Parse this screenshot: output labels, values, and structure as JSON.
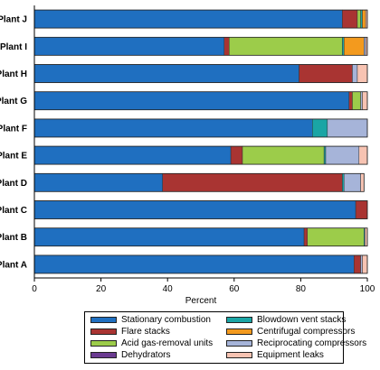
{
  "chart_data": {
    "type": "bar",
    "orientation": "horizontal",
    "stacked": true,
    "categories": [
      "Plant J",
      "Plant I",
      "Plant H",
      "Plant G",
      "Plant F",
      "Plant E",
      "Plant D",
      "Plant C",
      "Plant B",
      "Plant A"
    ],
    "xlabel": "Percent",
    "xlim": [
      0,
      100
    ],
    "xticks": [
      "0",
      "20",
      "40",
      "60",
      "80",
      "100"
    ],
    "grid": false,
    "legend_position": "bottom",
    "series": [
      {
        "name": "Stationary combustion",
        "color": "#1f6fc0",
        "values": [
          92.5,
          57,
          79.5,
          94.5,
          83.5,
          59,
          38.5,
          96.5,
          81,
          96
        ]
      },
      {
        "name": "Flare stacks",
        "color": "#a93432",
        "values": [
          4.5,
          1.5,
          16,
          1,
          0,
          3.5,
          54,
          3.5,
          1,
          2
        ]
      },
      {
        "name": "Acid gas-removal units",
        "color": "#9ccc4a",
        "values": [
          1,
          34,
          0,
          2.5,
          0,
          24.5,
          0,
          0,
          17,
          0
        ]
      },
      {
        "name": "Dehydrators",
        "color": "#6b3b91",
        "values": [
          0,
          0,
          0,
          0,
          0,
          0,
          0,
          0,
          0,
          0
        ]
      },
      {
        "name": "Blowdown vent stacks",
        "color": "#1aa5a5",
        "values": [
          0.5,
          0.5,
          0,
          0,
          4.5,
          0.5,
          0.5,
          0,
          0.3,
          0
        ]
      },
      {
        "name": "Centrifugal compressors",
        "color": "#f39a1e",
        "values": [
          1,
          6,
          0,
          0,
          0,
          0,
          0,
          0,
          0,
          0
        ]
      },
      {
        "name": "Reciprocating compressors",
        "color": "#a6b4d9",
        "values": [
          0,
          0.5,
          1.5,
          0.5,
          12,
          10,
          5,
          0,
          0,
          0.5
        ]
      },
      {
        "name": "Equipment leaks",
        "color": "#f7c3b2",
        "values": [
          0.5,
          0.5,
          3,
          1.5,
          0,
          2.5,
          1,
          0,
          0.7,
          1.5
        ]
      }
    ]
  }
}
